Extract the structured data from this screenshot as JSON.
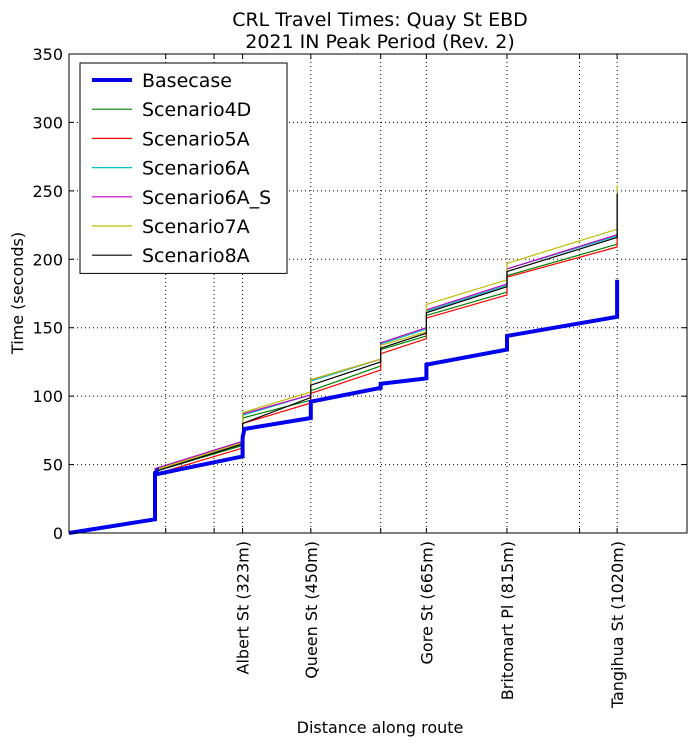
{
  "chart_data": {
    "type": "line",
    "title": "CRL Travel Times: Quay St EBD",
    "subtitle": "2021 IN Peak Period (Rev. 2)",
    "xlabel": "Distance along route",
    "ylabel": "Time (seconds)",
    "xlim": [
      0,
      1150
    ],
    "ylim": [
      0,
      350
    ],
    "yticks": [
      0,
      50,
      100,
      150,
      200,
      250,
      300,
      350
    ],
    "xticks": [
      {
        "value": 180,
        "label": ""
      },
      {
        "value": 270,
        "label": ""
      },
      {
        "value": 323,
        "label": "Albert St (323m)"
      },
      {
        "value": 450,
        "label": "Queen St (450m)"
      },
      {
        "value": 580,
        "label": ""
      },
      {
        "value": 665,
        "label": "Gore St (665m)"
      },
      {
        "value": 815,
        "label": "Britomart Pl (815m)"
      },
      {
        "value": 950,
        "label": ""
      },
      {
        "value": 1020,
        "label": "Tangihua St (1020m)"
      }
    ],
    "grid": true,
    "legend_position": "top-left",
    "series": [
      {
        "name": "Basecase",
        "color": "#0000ee",
        "x": [
          0,
          160,
          160,
          163,
          163,
          323,
          323,
          326,
          326,
          450,
          450,
          580,
          580,
          665,
          665,
          815,
          815,
          1020,
          1020
        ],
        "y": [
          0,
          10,
          44,
          45,
          43,
          56,
          70,
          75,
          76,
          84,
          96,
          106,
          109,
          113,
          123,
          134,
          144,
          158,
          185
        ]
      },
      {
        "name": "Scenario4D",
        "color": "#008000",
        "x": [
          0,
          160,
          160,
          323,
          323,
          450,
          450,
          580,
          580,
          665,
          665,
          815,
          815,
          1020,
          1020
        ],
        "y": [
          0,
          10,
          45,
          64,
          84,
          97,
          104,
          122,
          134,
          144,
          159,
          176,
          188,
          211,
          248
        ]
      },
      {
        "name": "Scenario5A",
        "color": "#ff0000",
        "x": [
          0,
          160,
          160,
          323,
          323,
          450,
          450,
          580,
          580,
          665,
          665,
          815,
          815,
          1020,
          1020
        ],
        "y": [
          0,
          10,
          43,
          62,
          80,
          95,
          102,
          119,
          131,
          142,
          157,
          174,
          187,
          209,
          246
        ]
      },
      {
        "name": "Scenario6A",
        "color": "#00bfbf",
        "x": [
          0,
          160,
          160,
          323,
          323,
          450,
          450,
          580,
          580,
          665,
          665,
          815,
          815,
          1020,
          1020
        ],
        "y": [
          0,
          10,
          47,
          67,
          86,
          101,
          111,
          127,
          138,
          149,
          162,
          181,
          193,
          217,
          249
        ]
      },
      {
        "name": "Scenario6A_S",
        "color": "#bf00bf",
        "x": [
          0,
          160,
          160,
          323,
          323,
          450,
          450,
          580,
          580,
          665,
          665,
          815,
          815,
          1020,
          1020
        ],
        "y": [
          0,
          10,
          47,
          67,
          87,
          101,
          112,
          127,
          139,
          150,
          163,
          182,
          193,
          218,
          250
        ]
      },
      {
        "name": "Scenario7A",
        "color": "#bfbf00",
        "x": [
          0,
          160,
          160,
          323,
          323,
          450,
          450,
          580,
          580,
          665,
          665,
          815,
          815,
          1020,
          1020
        ],
        "y": [
          0,
          10,
          46,
          66,
          88,
          103,
          112,
          127,
          137,
          147,
          167,
          185,
          197,
          222,
          254
        ]
      },
      {
        "name": "Scenario8A",
        "color": "#000000",
        "x": [
          0,
          160,
          160,
          323,
          323,
          450,
          450,
          580,
          580,
          665,
          665,
          815,
          815,
          1020,
          1020
        ],
        "y": [
          0,
          10,
          45,
          65,
          80,
          99,
          108,
          125,
          135,
          146,
          161,
          180,
          191,
          216,
          248
        ]
      }
    ]
  }
}
